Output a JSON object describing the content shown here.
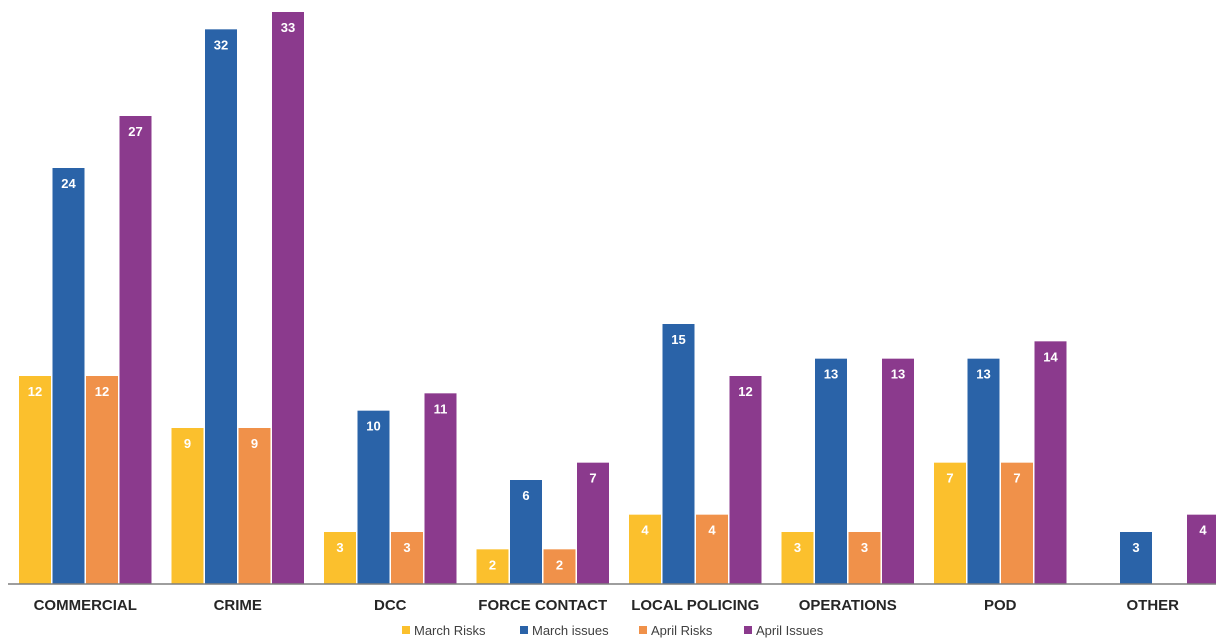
{
  "chart_data": {
    "type": "bar",
    "title": "",
    "xlabel": "",
    "ylabel": "",
    "ylim": [
      0,
      33
    ],
    "grid": false,
    "legend_position": "bottom",
    "categories": [
      "COMMERCIAL",
      "CRIME",
      "DCC",
      "FORCE CONTACT",
      "LOCAL POLICING",
      "OPERATIONS",
      "POD",
      "OTHER"
    ],
    "series": [
      {
        "name": "March Risks",
        "color": "#FBC02D",
        "values": [
          12,
          9,
          3,
          2,
          4,
          3,
          7,
          null
        ]
      },
      {
        "name": "March issues",
        "color": "#2A63A8",
        "values": [
          24,
          32,
          10,
          6,
          15,
          13,
          13,
          3
        ]
      },
      {
        "name": "April Risks",
        "color": "#F0914A",
        "values": [
          12,
          9,
          3,
          2,
          4,
          3,
          7,
          null
        ]
      },
      {
        "name": "April Issues",
        "color": "#8B3A8D",
        "values": [
          27,
          33,
          11,
          7,
          12,
          13,
          14,
          4
        ]
      }
    ]
  }
}
